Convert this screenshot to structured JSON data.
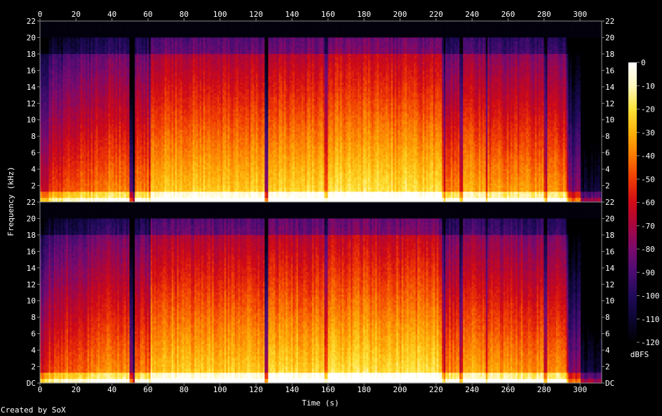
{
  "chart_data": {
    "type": "heatmap",
    "title": "",
    "xlabel": "Time (s)",
    "ylabel": "Frequency (kHz)",
    "colorbar_label": "dBFS",
    "credit": "Created by SoX",
    "channels": 2,
    "x_range": [
      0,
      312
    ],
    "x_ticks": [
      "0",
      "20",
      "40",
      "60",
      "80",
      "100",
      "120",
      "140",
      "160",
      "180",
      "200",
      "220",
      "240",
      "260",
      "280",
      "300"
    ],
    "y_range_khz": [
      0,
      22
    ],
    "y_ticks": [
      "DC",
      "2",
      "4",
      "6",
      "8",
      "10",
      "12",
      "14",
      "16",
      "18",
      "20",
      "22"
    ],
    "colorbar_range": [
      -120,
      0
    ],
    "colorbar_ticks": [
      "0",
      "-10",
      "-20",
      "-30",
      "-40",
      "-50",
      "-60",
      "-70",
      "-80",
      "-90",
      "-100",
      "-110",
      "-120"
    ],
    "content_cutoff_khz": 20,
    "segment_boundaries_s": [
      52,
      61,
      126,
      159,
      224,
      234,
      248,
      281,
      293
    ],
    "loudness_profile": [
      {
        "start": 0,
        "end": 5,
        "level": 0.55
      },
      {
        "start": 5,
        "end": 14,
        "level": 0.62
      },
      {
        "start": 14,
        "end": 30,
        "level": 0.68
      },
      {
        "start": 30,
        "end": 50,
        "level": 0.72
      },
      {
        "start": 50,
        "end": 53,
        "level": 0.35
      },
      {
        "start": 53,
        "end": 60,
        "level": 0.7
      },
      {
        "start": 60,
        "end": 95,
        "level": 0.82
      },
      {
        "start": 95,
        "end": 125,
        "level": 0.83
      },
      {
        "start": 125,
        "end": 127,
        "level": 0.6
      },
      {
        "start": 127,
        "end": 158,
        "level": 0.84
      },
      {
        "start": 158,
        "end": 224,
        "level": 0.86
      },
      {
        "start": 224,
        "end": 234,
        "level": 0.72
      },
      {
        "start": 234,
        "end": 248,
        "level": 0.78
      },
      {
        "start": 248,
        "end": 281,
        "level": 0.74
      },
      {
        "start": 281,
        "end": 293,
        "level": 0.72
      },
      {
        "start": 293,
        "end": 300,
        "level": 0.38
      },
      {
        "start": 300,
        "end": 312,
        "level": 0.12
      }
    ],
    "colors": {
      "background": "#000000",
      "frame": "#8a8a8a",
      "colormap": [
        "#000000",
        "#0b0630",
        "#200a5a",
        "#4a0c72",
        "#7a0a6e",
        "#a8063e",
        "#cf0a16",
        "#ef3a04",
        "#fb7a02",
        "#fdb20a",
        "#fde238",
        "#fff8c0",
        "#ffffff"
      ]
    }
  }
}
